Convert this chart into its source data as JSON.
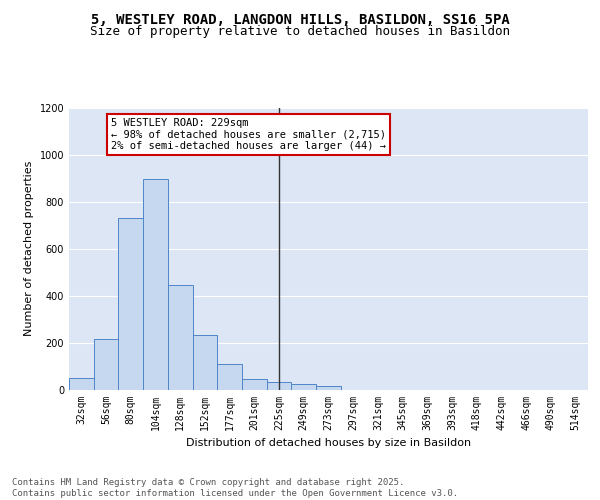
{
  "title1": "5, WESTLEY ROAD, LANGDON HILLS, BASILDON, SS16 5PA",
  "title2": "Size of property relative to detached houses in Basildon",
  "xlabel": "Distribution of detached houses by size in Basildon",
  "ylabel": "Number of detached properties",
  "categories": [
    "32sqm",
    "56sqm",
    "80sqm",
    "104sqm",
    "128sqm",
    "152sqm",
    "177sqm",
    "201sqm",
    "225sqm",
    "249sqm",
    "273sqm",
    "297sqm",
    "321sqm",
    "345sqm",
    "369sqm",
    "393sqm",
    "418sqm",
    "442sqm",
    "466sqm",
    "490sqm",
    "514sqm"
  ],
  "values": [
    50,
    215,
    730,
    895,
    445,
    235,
    110,
    48,
    32,
    25,
    15,
    0,
    0,
    0,
    0,
    0,
    0,
    0,
    0,
    0,
    0
  ],
  "bar_color": "#c5d8f0",
  "bar_edge_color": "#4e86c8",
  "bg_color": "#dce6f5",
  "grid_color": "#ffffff",
  "vline_x": 8.0,
  "vline_color": "#333333",
  "annotation_text": "5 WESTLEY ROAD: 229sqm\n← 98% of detached houses are smaller (2,715)\n2% of semi-detached houses are larger (44) →",
  "annotation_box_color": "#ffffff",
  "annotation_box_edge": "#cc0000",
  "ylim": [
    0,
    1200
  ],
  "yticks": [
    0,
    200,
    400,
    600,
    800,
    1000,
    1200
  ],
  "footer": "Contains HM Land Registry data © Crown copyright and database right 2025.\nContains public sector information licensed under the Open Government Licence v3.0.",
  "title_fontsize": 10,
  "subtitle_fontsize": 9,
  "axis_label_fontsize": 8,
  "tick_fontsize": 7,
  "annotation_fontsize": 7.5,
  "footer_fontsize": 6.5
}
